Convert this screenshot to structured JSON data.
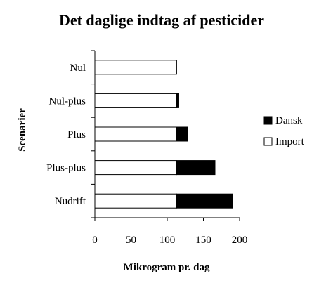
{
  "chart_data": {
    "type": "bar",
    "orientation": "horizontal",
    "stacked": true,
    "title": "Det daglige indtag af pesticider",
    "xlabel": "Mikrogram pr. dag",
    "ylabel": "Scenarier",
    "categories": [
      "Nul",
      "Nul-plus",
      "Plus",
      "Plus-plus",
      "Nudrift"
    ],
    "series": [
      {
        "name": "Import",
        "values": [
          113,
          113,
          113,
          113,
          113
        ],
        "color": "#ffffff"
      },
      {
        "name": "Dansk",
        "values": [
          0,
          3,
          15,
          53,
          77
        ],
        "color": "#000000"
      }
    ],
    "xlim": [
      0,
      200
    ],
    "xticks": [
      "0",
      "50",
      "100",
      "150",
      "200"
    ],
    "grid": false,
    "legend_position": "right"
  }
}
